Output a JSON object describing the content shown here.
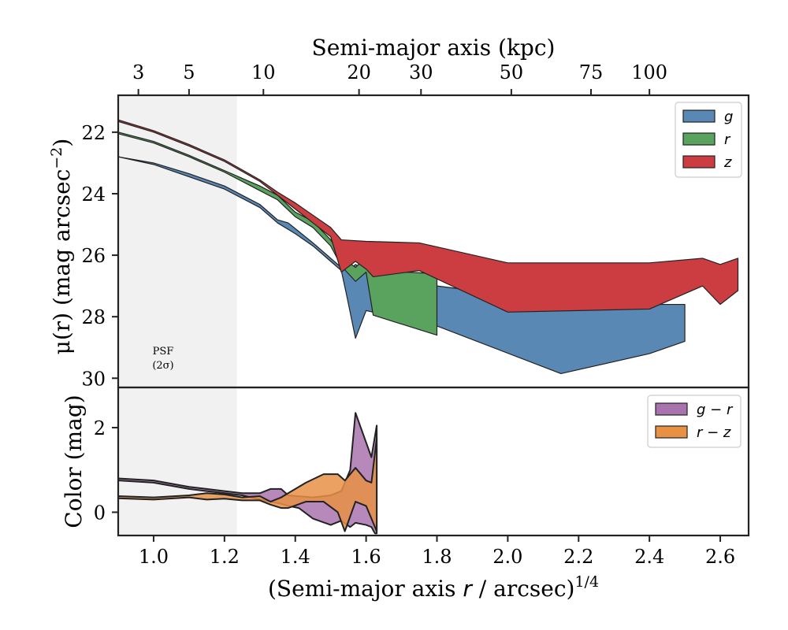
{
  "chart_data": [
    {
      "type": "area",
      "panel": "top",
      "ylabel_main": "μ(r) (mag arcsec",
      "ylabel_sup": "−2",
      "ylabel_tail": ")",
      "top_xlabel": "Semi-major axis (kpc)",
      "top_ticks": [
        {
          "x": 0.957,
          "label": "3"
        },
        {
          "x": 1.1,
          "label": "5"
        },
        {
          "x": 1.31,
          "label": "10"
        },
        {
          "x": 1.58,
          "label": "20"
        },
        {
          "x": 1.755,
          "label": "30"
        },
        {
          "x": 2.01,
          "label": "50"
        },
        {
          "x": 2.235,
          "label": "75"
        },
        {
          "x": 2.4,
          "label": "100"
        }
      ],
      "xlim": [
        0.9,
        2.68
      ],
      "ylim": [
        30.3,
        20.8
      ],
      "yticks": [
        22,
        24,
        26,
        28,
        30
      ],
      "legend_position": "top-right",
      "psf_band_x": [
        0.9,
        1.235
      ],
      "psf_label_1": "PSF",
      "psf_label_2": "(2σ)",
      "series": [
        {
          "name": "g",
          "color": "#5a88b4",
          "upper": [
            [
              0.9,
              22.8
            ],
            [
              1.0,
              23.0
            ],
            [
              1.1,
              23.35
            ],
            [
              1.2,
              23.75
            ],
            [
              1.3,
              24.35
            ],
            [
              1.35,
              24.85
            ],
            [
              1.38,
              24.95
            ],
            [
              1.45,
              25.6
            ],
            [
              1.5,
              26.1
            ],
            [
              1.53,
              26.4
            ],
            [
              1.55,
              26.5
            ],
            [
              1.57,
              26.3
            ],
            [
              1.6,
              26.5
            ],
            [
              1.8,
              27.0
            ],
            [
              2.15,
              27.5
            ],
            [
              2.4,
              27.6
            ],
            [
              2.5,
              27.6
            ]
          ],
          "lower": [
            [
              0.9,
              22.8
            ],
            [
              1.0,
              23.05
            ],
            [
              1.1,
              23.45
            ],
            [
              1.2,
              23.85
            ],
            [
              1.3,
              24.45
            ],
            [
              1.35,
              24.95
            ],
            [
              1.4,
              25.3
            ],
            [
              1.45,
              25.7
            ],
            [
              1.5,
              26.2
            ],
            [
              1.53,
              26.5
            ],
            [
              1.545,
              27.3
            ],
            [
              1.57,
              28.7
            ],
            [
              1.6,
              27.8
            ],
            [
              1.8,
              28.3
            ],
            [
              2.15,
              29.85
            ],
            [
              2.4,
              29.2
            ],
            [
              2.5,
              28.8
            ]
          ]
        },
        {
          "name": "r",
          "color": "#5aa35f",
          "upper": [
            [
              0.9,
              22.0
            ],
            [
              1.0,
              22.3
            ],
            [
              1.1,
              22.75
            ],
            [
              1.2,
              23.25
            ],
            [
              1.3,
              23.75
            ],
            [
              1.35,
              24.05
            ],
            [
              1.4,
              24.6
            ],
            [
              1.45,
              24.9
            ],
            [
              1.5,
              25.5
            ],
            [
              1.53,
              26.05
            ],
            [
              1.57,
              26.4
            ],
            [
              1.6,
              26.05
            ],
            [
              1.62,
              26.5
            ],
            [
              1.8,
              26.6
            ]
          ],
          "lower": [
            [
              0.9,
              22.05
            ],
            [
              1.0,
              22.35
            ],
            [
              1.1,
              22.8
            ],
            [
              1.2,
              23.3
            ],
            [
              1.3,
              23.9
            ],
            [
              1.35,
              24.2
            ],
            [
              1.4,
              24.75
            ],
            [
              1.45,
              25.1
            ],
            [
              1.5,
              25.7
            ],
            [
              1.53,
              26.35
            ],
            [
              1.57,
              26.85
            ],
            [
              1.6,
              26.55
            ],
            [
              1.62,
              27.95
            ],
            [
              1.8,
              28.6
            ]
          ]
        },
        {
          "name": "z",
          "color": "#cc3d42",
          "upper": [
            [
              0.9,
              21.6
            ],
            [
              1.0,
              21.95
            ],
            [
              1.1,
              22.4
            ],
            [
              1.2,
              22.9
            ],
            [
              1.3,
              23.55
            ],
            [
              1.35,
              23.95
            ],
            [
              1.4,
              24.3
            ],
            [
              1.45,
              24.7
            ],
            [
              1.5,
              25.1
            ],
            [
              1.53,
              25.5
            ],
            [
              1.6,
              25.55
            ],
            [
              1.75,
              25.6
            ],
            [
              2.0,
              26.25
            ],
            [
              2.4,
              26.25
            ],
            [
              2.55,
              26.1
            ],
            [
              2.6,
              26.3
            ],
            [
              2.65,
              26.1
            ]
          ],
          "lower": [
            [
              0.9,
              21.65
            ],
            [
              1.0,
              22.0
            ],
            [
              1.1,
              22.45
            ],
            [
              1.2,
              22.95
            ],
            [
              1.3,
              23.6
            ],
            [
              1.35,
              24.05
            ],
            [
              1.4,
              24.5
            ],
            [
              1.45,
              24.95
            ],
            [
              1.5,
              25.4
            ],
            [
              1.53,
              26.55
            ],
            [
              1.57,
              26.2
            ],
            [
              1.6,
              26.45
            ],
            [
              1.62,
              26.7
            ],
            [
              1.75,
              26.5
            ],
            [
              2.0,
              27.85
            ],
            [
              2.4,
              27.75
            ],
            [
              2.55,
              27.0
            ],
            [
              2.6,
              27.6
            ],
            [
              2.65,
              27.15
            ]
          ]
        }
      ]
    },
    {
      "type": "area",
      "panel": "bottom",
      "xlabel_main": "(Semi-major axis ",
      "xlabel_r": "r",
      "xlabel_tail": " / arcsec)",
      "xlabel_sup": "1/4",
      "ylabel": "Color (mag)",
      "xlim": [
        0.9,
        2.68
      ],
      "ylim": [
        -0.55,
        2.95
      ],
      "xticks": [
        1.0,
        1.2,
        1.4,
        1.6,
        1.8,
        2.0,
        2.2,
        2.4,
        2.6
      ],
      "xtick_labels": [
        "1.0",
        "1.2",
        "1.4",
        "1.6",
        "1.8",
        "2.0",
        "2.2",
        "2.4",
        "2.6"
      ],
      "yticks": [
        0,
        2
      ],
      "legend_position": "top-right",
      "psf_band_x": [
        0.9,
        1.235
      ],
      "series": [
        {
          "name": "g − r",
          "color": "#a974ae",
          "upper": [
            [
              0.9,
              0.8
            ],
            [
              1.0,
              0.75
            ],
            [
              1.1,
              0.6
            ],
            [
              1.15,
              0.55
            ],
            [
              1.2,
              0.5
            ],
            [
              1.25,
              0.45
            ],
            [
              1.3,
              0.45
            ],
            [
              1.33,
              0.55
            ],
            [
              1.36,
              0.55
            ],
            [
              1.38,
              0.4
            ],
            [
              1.45,
              0.35
            ],
            [
              1.5,
              0.4
            ],
            [
              1.53,
              0.5
            ],
            [
              1.555,
              1.0
            ],
            [
              1.57,
              2.35
            ],
            [
              1.6,
              1.65
            ],
            [
              1.615,
              1.3
            ],
            [
              1.63,
              2.05
            ],
            [
              1.63,
              -0.5
            ]
          ],
          "lower": [
            [
              0.9,
              0.75
            ],
            [
              1.0,
              0.7
            ],
            [
              1.1,
              0.55
            ],
            [
              1.15,
              0.5
            ],
            [
              1.2,
              0.45
            ],
            [
              1.25,
              0.4
            ],
            [
              1.3,
              0.3
            ],
            [
              1.33,
              0.25
            ],
            [
              1.36,
              0.2
            ],
            [
              1.38,
              0.15
            ],
            [
              1.41,
              0.1
            ],
            [
              1.45,
              -0.15
            ],
            [
              1.5,
              -0.3
            ],
            [
              1.53,
              -0.2
            ],
            [
              1.555,
              -0.35
            ],
            [
              1.57,
              -0.25
            ],
            [
              1.6,
              -0.3
            ],
            [
              1.615,
              -0.35
            ],
            [
              1.625,
              -0.5
            ]
          ]
        },
        {
          "name": "r − z",
          "color": "#e89145",
          "upper": [
            [
              0.9,
              0.38
            ],
            [
              1.0,
              0.35
            ],
            [
              1.1,
              0.4
            ],
            [
              1.15,
              0.45
            ],
            [
              1.2,
              0.42
            ],
            [
              1.25,
              0.35
            ],
            [
              1.3,
              0.38
            ],
            [
              1.33,
              0.25
            ],
            [
              1.36,
              0.35
            ],
            [
              1.38,
              0.45
            ],
            [
              1.43,
              0.7
            ],
            [
              1.48,
              0.9
            ],
            [
              1.52,
              0.9
            ],
            [
              1.54,
              0.75
            ],
            [
              1.57,
              1.05
            ],
            [
              1.6,
              0.75
            ],
            [
              1.615,
              0.7
            ],
            [
              1.63,
              1.75
            ]
          ],
          "lower": [
            [
              0.9,
              0.33
            ],
            [
              1.0,
              0.3
            ],
            [
              1.1,
              0.35
            ],
            [
              1.15,
              0.3
            ],
            [
              1.2,
              0.32
            ],
            [
              1.25,
              0.28
            ],
            [
              1.3,
              0.28
            ],
            [
              1.33,
              0.18
            ],
            [
              1.36,
              0.1
            ],
            [
              1.38,
              0.1
            ],
            [
              1.43,
              0.25
            ],
            [
              1.48,
              0.25
            ],
            [
              1.52,
              0.0
            ],
            [
              1.54,
              -0.45
            ],
            [
              1.57,
              0.25
            ],
            [
              1.6,
              0.15
            ],
            [
              1.615,
              -0.15
            ],
            [
              1.63,
              -0.45
            ]
          ]
        }
      ]
    }
  ]
}
